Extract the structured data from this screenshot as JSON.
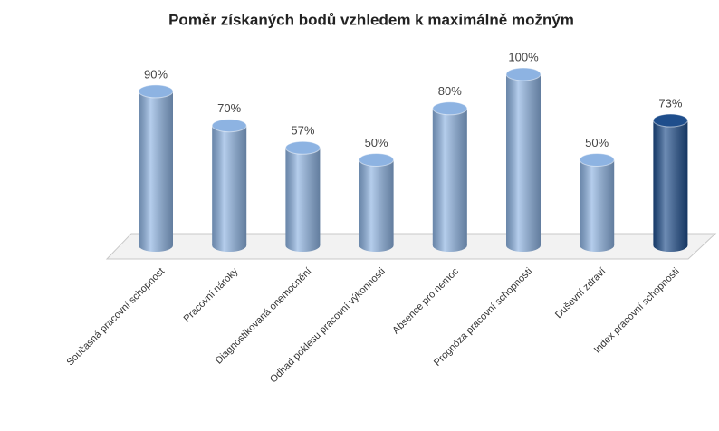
{
  "chart_data": {
    "type": "bar",
    "title": "Poměr získaných bodů vzhledem k maximálně možným",
    "categories": [
      "Současná pracovní schopnost",
      "Pracovní nároky",
      "Diagnostikovaná onemocnění",
      "Odhad poklesu pracovní výkonnosti",
      "Absence pro nemoc",
      "Prognóza pracovní schopnosti",
      "Duševní  zdraví",
      "Index pracovní schopnosti"
    ],
    "values": [
      90,
      70,
      57,
      50,
      80,
      100,
      50,
      73
    ],
    "value_labels": [
      "90%",
      "70%",
      "57%",
      "50%",
      "80%",
      "100%",
      "50%",
      "73%"
    ],
    "colors": [
      "#8db3e2",
      "#8db3e2",
      "#8db3e2",
      "#8db3e2",
      "#8db3e2",
      "#8db3e2",
      "#8db3e2",
      "#1f4e8c"
    ]
  }
}
